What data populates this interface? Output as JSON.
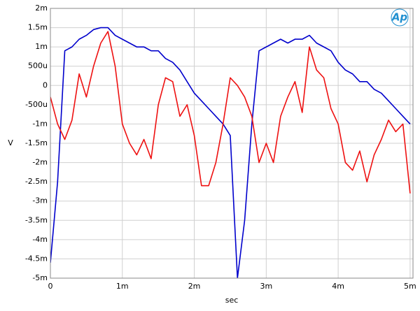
{
  "chart_data": {
    "type": "line",
    "logo": "Ap",
    "x_label": "sec",
    "y_label": "V",
    "x": [
      0,
      0.0001,
      0.0002,
      0.0003,
      0.0004,
      0.0005,
      0.0006,
      0.0007,
      0.0008,
      0.0009,
      0.001,
      0.0011,
      0.0012,
      0.0013,
      0.0014,
      0.0015,
      0.0016,
      0.0017,
      0.0018,
      0.0019,
      0.002,
      0.0021,
      0.0022,
      0.0023,
      0.0024,
      0.0025,
      0.0026,
      0.0027,
      0.0028,
      0.0029,
      0.003,
      0.0031,
      0.0032,
      0.0033,
      0.0034,
      0.0035,
      0.0036,
      0.0037,
      0.0038,
      0.0039,
      0.004,
      0.0041,
      0.0042,
      0.0043,
      0.0044,
      0.0045,
      0.0046,
      0.0047,
      0.0048,
      0.0049,
      0.005
    ],
    "series": [
      {
        "color": "#0000cc",
        "values": [
          -0.0046,
          -0.0025,
          0.0009,
          0.001,
          0.0012,
          0.0013,
          0.00145,
          0.0015,
          0.0015,
          0.0013,
          0.0012,
          0.0011,
          0.001,
          0.001,
          0.0009,
          0.0009,
          0.0007,
          0.0006,
          0.0004,
          0.0001,
          -0.0002,
          -0.0004,
          -0.0006,
          -0.0008,
          -0.001,
          -0.0013,
          -0.005,
          -0.0035,
          -0.001,
          0.0009,
          0.001,
          0.0011,
          0.0012,
          0.0011,
          0.0012,
          0.0012,
          0.0013,
          0.0011,
          0.001,
          0.0009,
          0.0006,
          0.0004,
          0.0003,
          0.0001,
          0.0001,
          -0.0001,
          -0.0002,
          -0.0004,
          -0.0006,
          -0.0008,
          -0.001
        ]
      },
      {
        "color": "#ee1111",
        "values": [
          -0.0003,
          -0.001,
          -0.0014,
          -0.0009,
          0.0003,
          -0.0003,
          0.0005,
          0.0011,
          0.0014,
          0.0005,
          -0.001,
          -0.0015,
          -0.0018,
          -0.0014,
          -0.0019,
          -0.0005,
          0.0002,
          0.0001,
          -0.0008,
          -0.0005,
          -0.0013,
          -0.0026,
          -0.0026,
          -0.002,
          -0.001,
          0.0002,
          0,
          -0.0003,
          -0.0008,
          -0.002,
          -0.0015,
          -0.002,
          -0.0008,
          -0.0003,
          0.0001,
          -0.0007,
          0.001,
          0.0004,
          0.0002,
          -0.0006,
          -0.001,
          -0.002,
          -0.0022,
          -0.0017,
          -0.0025,
          -0.0018,
          -0.0014,
          -0.0009,
          -0.0012,
          -0.001,
          -0.0028
        ]
      }
    ],
    "xlim": [
      0,
      0.00504
    ],
    "ylim": [
      -0.005,
      0.002
    ],
    "xticks": [
      0,
      {
        "value": 0.001,
        "label": "1m"
      },
      {
        "value": 0.002,
        "label": "2m"
      },
      {
        "value": 0.003,
        "label": "3m"
      },
      {
        "value": 0.004,
        "label": "4m"
      },
      {
        "value": 0.005,
        "label": "5m"
      }
    ],
    "yticks": [
      {
        "value": 0.002,
        "label": "2m"
      },
      {
        "value": 0.0015,
        "label": "1.5m"
      },
      {
        "value": 0.001,
        "label": "1m"
      },
      {
        "value": 0.0005,
        "label": "500u"
      },
      0,
      {
        "value": -0.0005,
        "label": "-500u"
      },
      {
        "value": -0.001,
        "label": "-1m"
      },
      {
        "value": -0.0015,
        "label": "-1.5m"
      },
      {
        "value": -0.002,
        "label": "-2m"
      },
      {
        "value": -0.0025,
        "label": "-2.5m"
      },
      {
        "value": -0.003,
        "label": "-3m"
      },
      {
        "value": -0.0035,
        "label": "-3.5m"
      },
      {
        "value": -0.004,
        "label": "-4m"
      },
      {
        "value": -0.0045,
        "label": "-4.5m"
      },
      {
        "value": -0.005,
        "label": "-5m"
      }
    ],
    "grid": true
  }
}
